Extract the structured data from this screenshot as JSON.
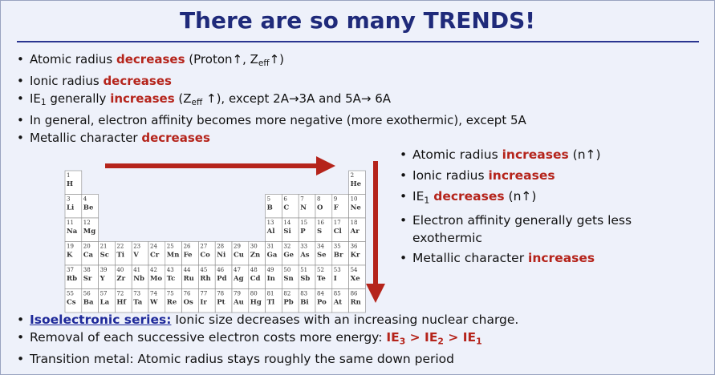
{
  "title": "There are so many TRENDS!",
  "top_bullets": [
    [
      {
        "text": "Atomic radius "
      },
      {
        "text": "decreases",
        "style": "red"
      },
      {
        "text": "  (Proton↑, Z"
      },
      {
        "text": "eff",
        "style": "sub"
      },
      {
        "text": "↑)"
      }
    ],
    [
      {
        "text": "Ionic radius "
      },
      {
        "text": "decreases",
        "style": "red"
      }
    ],
    [
      {
        "text": "IE"
      },
      {
        "text": "1",
        "style": "sub"
      },
      {
        "text": " generally "
      },
      {
        "text": "increases",
        "style": "red"
      },
      {
        "text": " (Z"
      },
      {
        "text": "eff",
        "style": "sub"
      },
      {
        "text": " ↑), except 2A→3A and 5A→ 6A"
      }
    ],
    [
      {
        "text": "In general, electron affinity becomes more negative (more exothermic), except 5A"
      }
    ],
    [
      {
        "text": "Metallic character "
      },
      {
        "text": "decreases",
        "style": "red"
      }
    ]
  ],
  "right_bullets": [
    [
      {
        "text": "Atomic radius "
      },
      {
        "text": "increases",
        "style": "red"
      },
      {
        "text": " (n↑)"
      }
    ],
    [
      {
        "text": "Ionic radius "
      },
      {
        "text": "increases",
        "style": "red"
      }
    ],
    [
      {
        "text": "IE"
      },
      {
        "text": "1",
        "style": "sub"
      },
      {
        "text": " "
      },
      {
        "text": "decreases",
        "style": "red"
      },
      {
        "text": " (n↑)"
      }
    ],
    [
      {
        "text": "Electron affinity generally gets less exothermic"
      }
    ],
    [
      {
        "text": "Metallic character "
      },
      {
        "text": "increases",
        "style": "red"
      }
    ]
  ],
  "bottom_bullets": [
    [
      {
        "text": "Isoelectronic series:",
        "style": "link"
      },
      {
        "text": " Ionic size decreases with an increasing nuclear charge."
      }
    ],
    [
      {
        "text": "Removal of each successive electron costs more energy: "
      },
      {
        "text": "IE",
        "style": "red"
      },
      {
        "text": "3",
        "style": "redsub"
      },
      {
        "text": " > IE",
        "style": "red"
      },
      {
        "text": "2",
        "style": "redsub"
      },
      {
        "text": " > IE",
        "style": "red"
      },
      {
        "text": "1",
        "style": "redsub"
      }
    ],
    [
      {
        "text": "Transition metal: Atomic radius stays roughly the same down period"
      }
    ]
  ],
  "periodic_table": {
    "rows": [
      [
        {
          "number": 1,
          "symbol": "H"
        },
        {
          "number": 2,
          "symbol": "He"
        }
      ],
      [
        {
          "number": 3,
          "symbol": "Li"
        },
        {
          "number": 4,
          "symbol": "Be"
        },
        {
          "number": 5,
          "symbol": "B"
        },
        {
          "number": 6,
          "symbol": "C"
        },
        {
          "number": 7,
          "symbol": "N"
        },
        {
          "number": 8,
          "symbol": "O"
        },
        {
          "number": 9,
          "symbol": "F"
        },
        {
          "number": 10,
          "symbol": "Ne"
        }
      ],
      [
        {
          "number": 11,
          "symbol": "Na"
        },
        {
          "number": 12,
          "symbol": "Mg"
        },
        {
          "number": 13,
          "symbol": "Al"
        },
        {
          "number": 14,
          "symbol": "Si"
        },
        {
          "number": 15,
          "symbol": "P"
        },
        {
          "number": 16,
          "symbol": "S"
        },
        {
          "number": 17,
          "symbol": "Cl"
        },
        {
          "number": 18,
          "symbol": "Ar"
        }
      ],
      [
        {
          "number": 19,
          "symbol": "K"
        },
        {
          "number": 20,
          "symbol": "Ca"
        },
        {
          "number": 21,
          "symbol": "Sc"
        },
        {
          "number": 22,
          "symbol": "Ti"
        },
        {
          "number": 23,
          "symbol": "V"
        },
        {
          "number": 24,
          "symbol": "Cr"
        },
        {
          "number": 25,
          "symbol": "Mn"
        },
        {
          "number": 26,
          "symbol": "Fe"
        },
        {
          "number": 27,
          "symbol": "Co"
        },
        {
          "number": 28,
          "symbol": "Ni"
        },
        {
          "number": 29,
          "symbol": "Cu"
        },
        {
          "number": 30,
          "symbol": "Zn"
        },
        {
          "number": 31,
          "symbol": "Ga"
        },
        {
          "number": 32,
          "symbol": "Ge"
        },
        {
          "number": 33,
          "symbol": "As"
        },
        {
          "number": 34,
          "symbol": "Se"
        },
        {
          "number": 35,
          "symbol": "Br"
        },
        {
          "number": 36,
          "symbol": "Kr"
        }
      ],
      [
        {
          "number": 37,
          "symbol": "Rb"
        },
        {
          "number": 38,
          "symbol": "Sr"
        },
        {
          "number": 39,
          "symbol": "Y"
        },
        {
          "number": 40,
          "symbol": "Zr"
        },
        {
          "number": 41,
          "symbol": "Nb"
        },
        {
          "number": 42,
          "symbol": "Mo"
        },
        {
          "number": 43,
          "symbol": "Tc"
        },
        {
          "number": 44,
          "symbol": "Ru"
        },
        {
          "number": 45,
          "symbol": "Rh"
        },
        {
          "number": 46,
          "symbol": "Pd"
        },
        {
          "number": 47,
          "symbol": "Ag"
        },
        {
          "number": 48,
          "symbol": "Cd"
        },
        {
          "number": 49,
          "symbol": "In"
        },
        {
          "number": 50,
          "symbol": "Sn"
        },
        {
          "number": 51,
          "symbol": "Sb"
        },
        {
          "number": 52,
          "symbol": "Te"
        },
        {
          "number": 53,
          "symbol": "I"
        },
        {
          "number": 54,
          "symbol": "Xe"
        }
      ],
      [
        {
          "number": 55,
          "symbol": "Cs"
        },
        {
          "number": 56,
          "symbol": "Ba"
        },
        {
          "number": 57,
          "symbol": "La"
        },
        {
          "number": 72,
          "symbol": "Hf"
        },
        {
          "number": 73,
          "symbol": "Ta"
        },
        {
          "number": 74,
          "symbol": "W"
        },
        {
          "number": 75,
          "symbol": "Re"
        },
        {
          "number": 76,
          "symbol": "Os"
        },
        {
          "number": 77,
          "symbol": "Ir"
        },
        {
          "number": 78,
          "symbol": "Pt"
        },
        {
          "number": 79,
          "symbol": "Au"
        },
        {
          "number": 80,
          "symbol": "Hg"
        },
        {
          "number": 81,
          "symbol": "Tl"
        },
        {
          "number": 82,
          "symbol": "Pb"
        },
        {
          "number": 83,
          "symbol": "Bi"
        },
        {
          "number": 84,
          "symbol": "Po"
        },
        {
          "number": 85,
          "symbol": "At"
        },
        {
          "number": 86,
          "symbol": "Rn"
        }
      ]
    ]
  }
}
